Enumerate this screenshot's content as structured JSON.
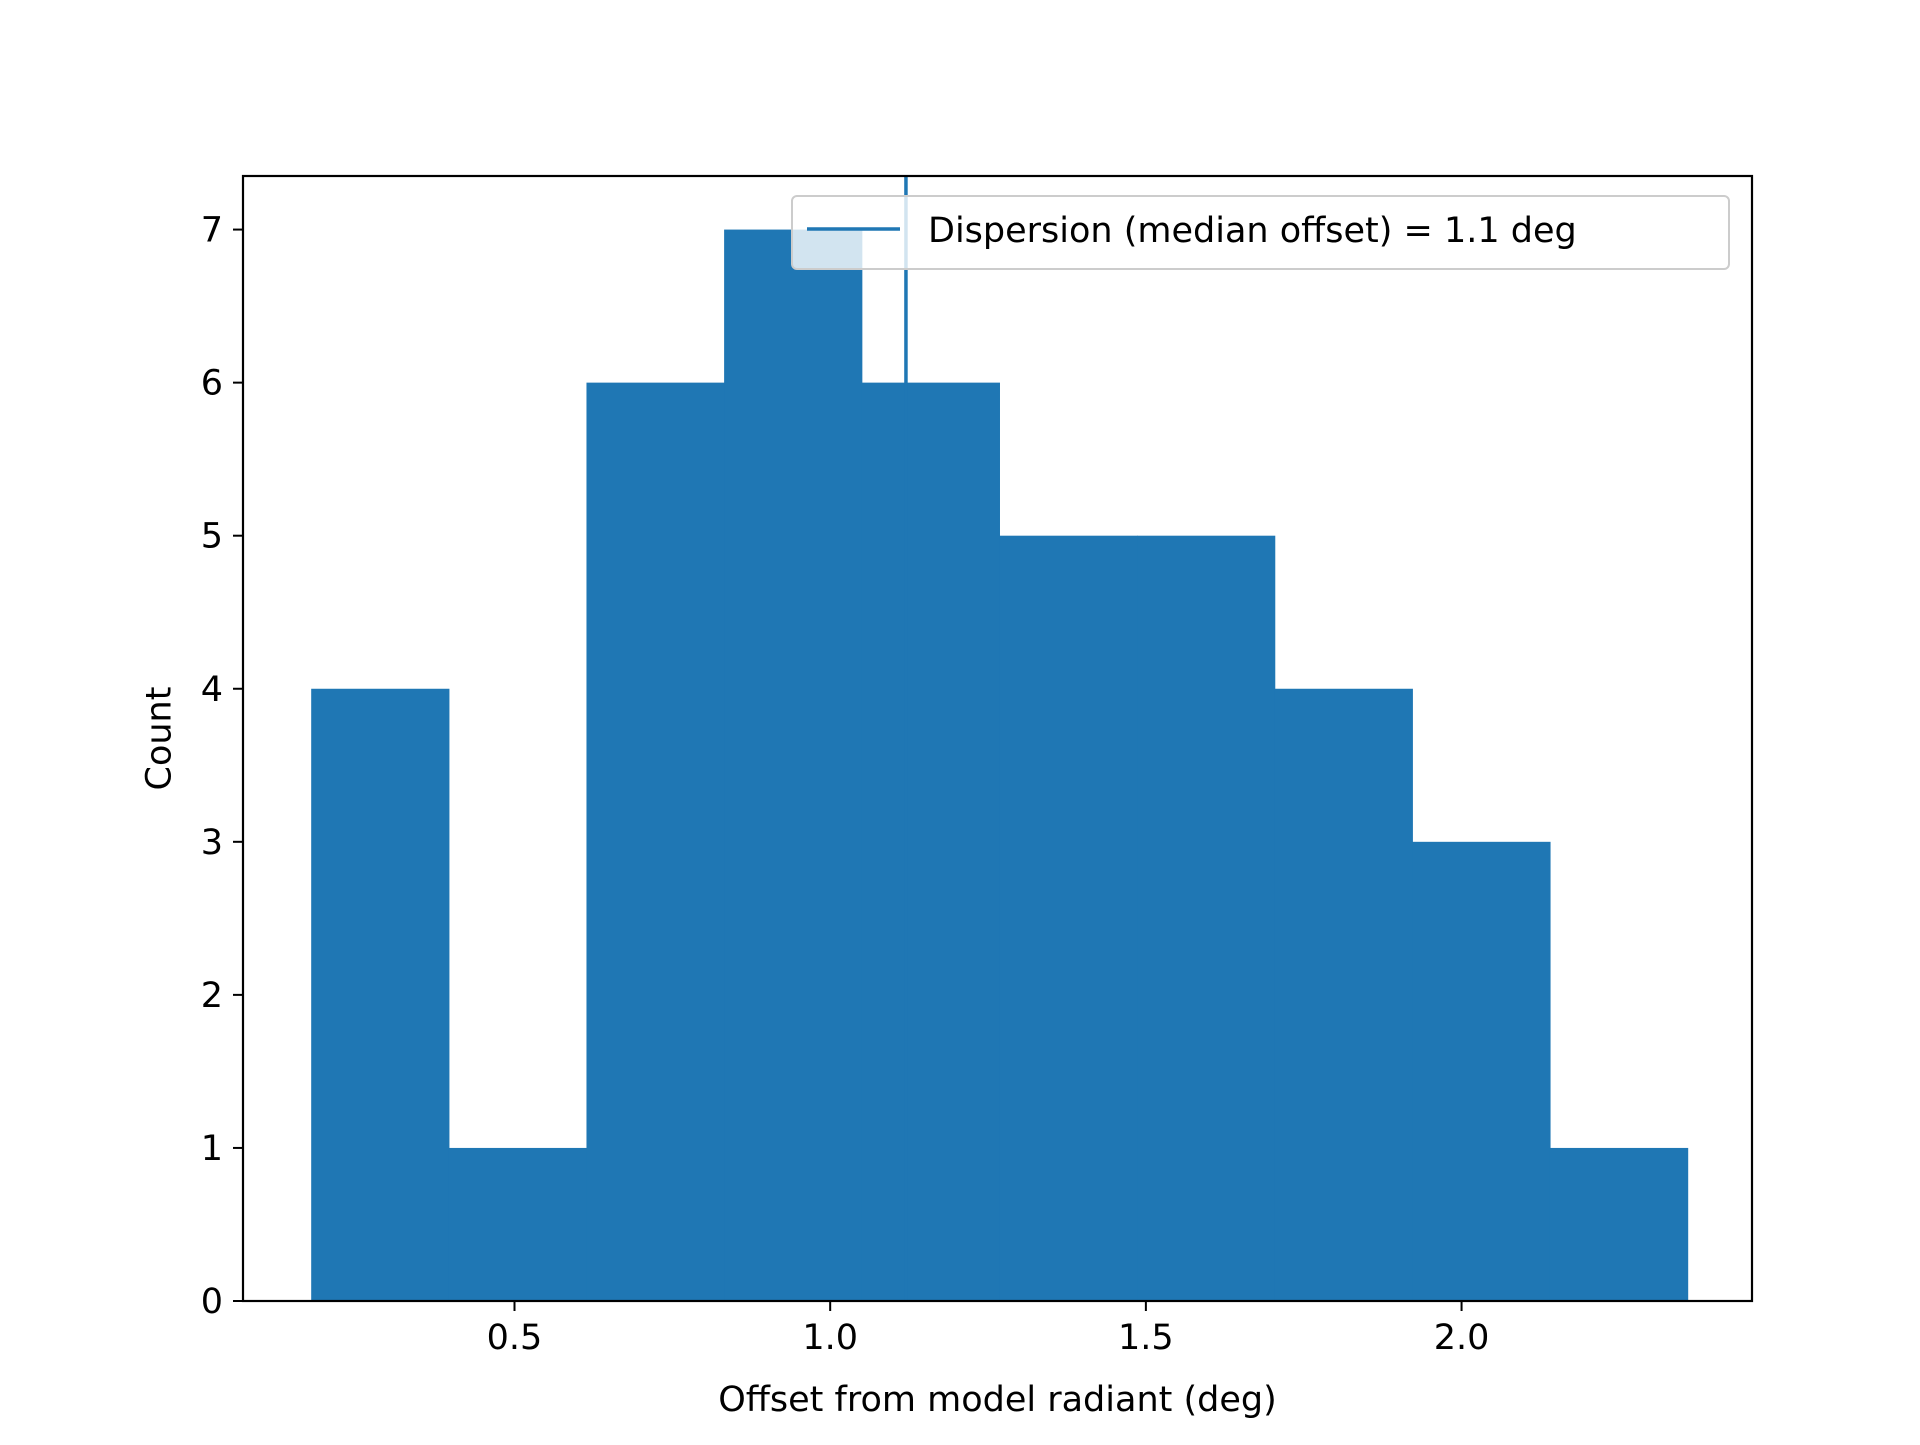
{
  "chart_data": {
    "type": "bar",
    "subtype": "histogram",
    "xlabel": "Offset from model radiant (deg)",
    "ylabel": "Count",
    "xlim": [
      0.07,
      2.46
    ],
    "ylim": [
      0,
      7.35
    ],
    "x_ticks": [
      {
        "value": 0.5,
        "label": "0.5"
      },
      {
        "value": 1.0,
        "label": "1.0"
      },
      {
        "value": 1.5,
        "label": "1.5"
      },
      {
        "value": 2.0,
        "label": "2.0"
      }
    ],
    "y_ticks": [
      {
        "value": 0,
        "label": "0"
      },
      {
        "value": 1,
        "label": "1"
      },
      {
        "value": 2,
        "label": "2"
      },
      {
        "value": 3,
        "label": "3"
      },
      {
        "value": 4,
        "label": "4"
      },
      {
        "value": 5,
        "label": "5"
      },
      {
        "value": 6,
        "label": "6"
      },
      {
        "value": 7,
        "label": "7"
      }
    ],
    "bin_edges": [
      0.178,
      0.396,
      0.614,
      0.832,
      1.05,
      1.268,
      1.486,
      1.704,
      1.922,
      2.14,
      2.358
    ],
    "counts": [
      4,
      1,
      6,
      7,
      6,
      5,
      5,
      4,
      3,
      1
    ],
    "bar_color": "#1f77b4",
    "median_line": {
      "x": 1.12,
      "color": "#1f77b4",
      "legend_label": "Dispersion (median offset) = 1.1 deg"
    },
    "legend": {
      "placement": "upper right"
    },
    "grid": false
  }
}
